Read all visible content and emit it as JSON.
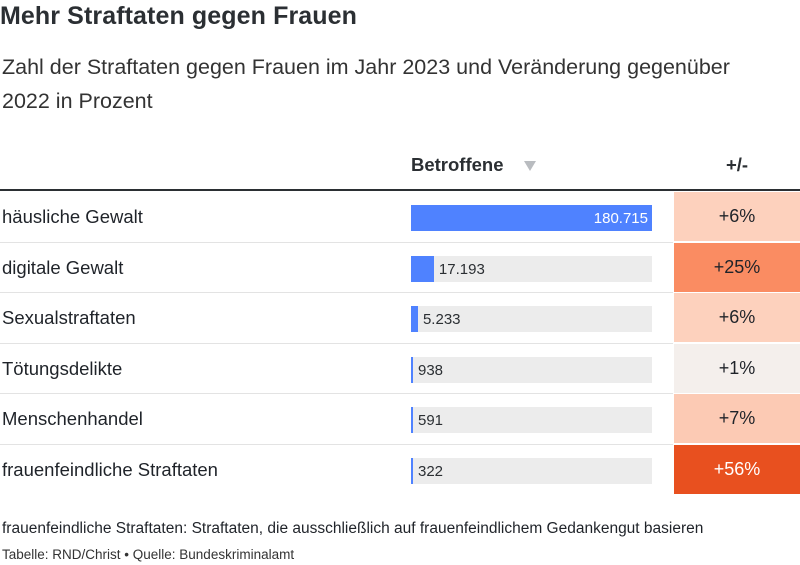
{
  "header": {
    "title": "Mehr Straftaten gegen Frauen",
    "subtitle": "Zahl der Straftaten gegen Frauen im Jahr 2023 und Veränderung gegenüber 2022 in Prozent"
  },
  "table": {
    "columns": {
      "category": "",
      "value": "Betroffene",
      "change": "+/-"
    },
    "sort_icon": "triangle-down-icon",
    "colors": {
      "bar": "#4f82ff",
      "track": "#ececec",
      "change_scale": [
        "#f4efec",
        "#fdd1bd",
        "#fa8c62",
        "#e8501f"
      ]
    }
  },
  "chart_data": {
    "type": "table",
    "columns": [
      "",
      "Betroffene",
      "+/-"
    ],
    "rows": [
      {
        "label": "häusliche Gewalt",
        "value": 180715,
        "value_label": "180.715",
        "change": 6,
        "change_label": "+6%",
        "change_color": "#fdd1bd"
      },
      {
        "label": "digitale Gewalt",
        "value": 17193,
        "value_label": "17.193",
        "change": 25,
        "change_label": "+25%",
        "change_color": "#fa8c62"
      },
      {
        "label": "Sexualstraftaten",
        "value": 5233,
        "value_label": "5.233",
        "change": 6,
        "change_label": "+6%",
        "change_color": "#fdd1bd"
      },
      {
        "label": "Tötungsdelikte",
        "value": 938,
        "value_label": "938",
        "change": 1,
        "change_label": "+1%",
        "change_color": "#f4efec"
      },
      {
        "label": "Menschenhandel",
        "value": 591,
        "value_label": "591",
        "change": 7,
        "change_label": "+7%",
        "change_color": "#fccab4"
      },
      {
        "label": "frauenfeindliche Straftaten",
        "value": 322,
        "value_label": "322",
        "change": 56,
        "change_label": "+56%",
        "change_color": "#e8501f"
      }
    ],
    "value_max": 180715
  },
  "footer": {
    "note": "frauenfeindliche Straftaten: Straftaten, die ausschließlich auf frauenfeindlichem Gedankengut basieren",
    "source": "Tabelle: RND/Christ • Quelle: Bundeskriminalamt"
  }
}
